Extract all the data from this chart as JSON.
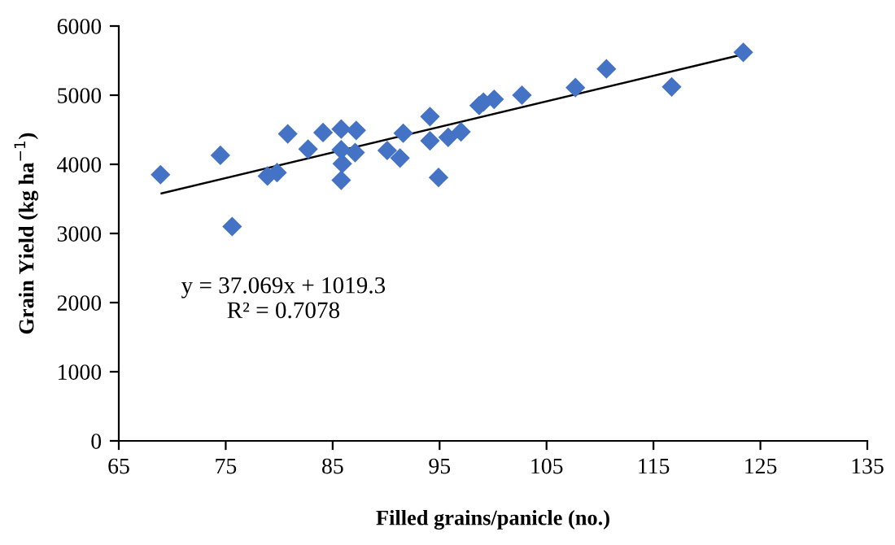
{
  "chart_data": {
    "type": "scatter",
    "xlabel": "Filled grains/panicle (no.)",
    "ylabel": "Grain Yield (kg ha$^{−1}$)",
    "xlim": [
      65,
      135
    ],
    "xticks": [
      65,
      75,
      85,
      95,
      105,
      115,
      125,
      135
    ],
    "ylim": [
      0,
      6000
    ],
    "yticks": [
      0,
      1000,
      2000,
      3000,
      4000,
      5000,
      6000
    ],
    "grid": false,
    "legend": false,
    "marker": "diamond",
    "series": [
      {
        "color": "#4472c4",
        "x": [
          68.9,
          74.5,
          75.6,
          78.9,
          79.8,
          80.8,
          82.7,
          84.1,
          85.8,
          85.8,
          85.9,
          85.8,
          87.2,
          87.1,
          90.1,
          91.3,
          91.6,
          94.1,
          94.1,
          94.9,
          95.8,
          97.0,
          98.7,
          99.1,
          100.1,
          102.7,
          107.7,
          110.6,
          116.7,
          123.4
        ],
        "values": [
          3850,
          4130,
          3100,
          3830,
          3880,
          4440,
          4220,
          4460,
          4510,
          4210,
          4010,
          3770,
          4490,
          4170,
          4200,
          4090,
          4450,
          4690,
          4340,
          3810,
          4390,
          4470,
          4850,
          4900,
          4940,
          5000,
          5110,
          5380,
          5120,
          5620
        ]
      },
      {
        "type": "line",
        "color": "#000000",
        "x": [
          69,
          123.4
        ],
        "values": [
          3580,
          5590
        ],
        "marker": "none"
      }
    ],
    "annotations": [
      "y = 37.069x + 1019.3\nR² = 0.7078"
    ]
  }
}
